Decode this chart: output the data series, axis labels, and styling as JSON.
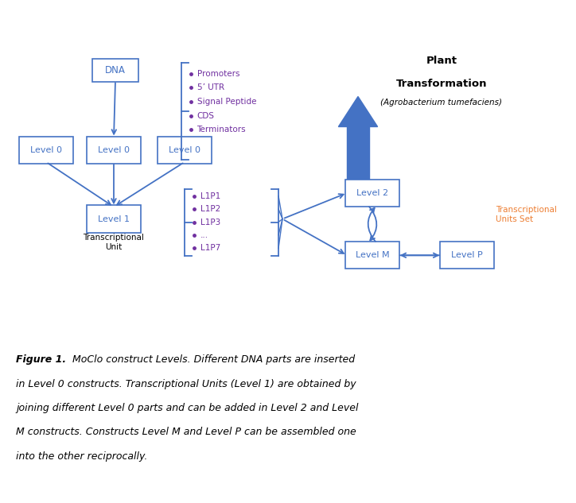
{
  "bg_color": "#ffffff",
  "dc": "#4472c4",
  "bullet_color": "#7030a0",
  "trans_units_color": "#ed7d31",
  "black": "#000000",
  "bullets_dna": [
    "Promoters",
    "5’ UTR",
    "Signal Peptide",
    "CDS",
    "Terminators"
  ],
  "bullets_l1p": [
    "L1P1",
    "L1P2",
    "L1P3",
    "...",
    "L1P7"
  ],
  "plant_line1": "Plant",
  "plant_line2": "Transformation",
  "plant_line3": "(Agrobacterium tumefaciens)",
  "trans_units_label": "Transcriptional\nUnits Set",
  "transcriptional_unit_label": "Transcriptional\nUnit",
  "caption_bold": "Figure 1.",
  "caption_rest": " MoClo construct Levels. Different DNA parts are inserted in Level 0 constructs. Transcriptional Units (Level 1) are obtained by joining different Level 0 parts and can be added in Level 2 and Level M constructs. Constructs Level M and Level P can be assembled one into the other reciprocally."
}
